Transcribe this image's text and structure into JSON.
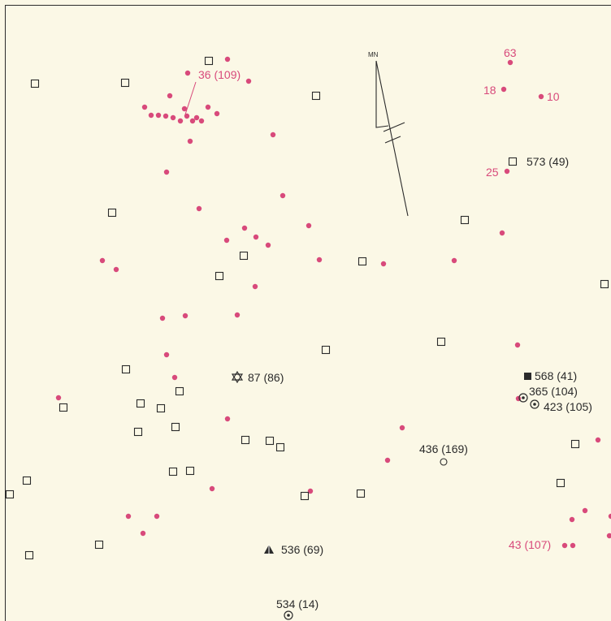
{
  "map": {
    "colors": {
      "background": "#fbf8e6",
      "pink": "#d84a7b",
      "ink": "#2b2b2b"
    },
    "north_arrow_label": "MN",
    "labels": [
      {
        "id": "l36",
        "text": "36 (109)",
        "color": "pink"
      },
      {
        "id": "l63",
        "text": "63",
        "color": "pink"
      },
      {
        "id": "l18",
        "text": "18",
        "color": "pink"
      },
      {
        "id": "l10",
        "text": "10",
        "color": "pink"
      },
      {
        "id": "l25",
        "text": "25",
        "color": "pink"
      },
      {
        "id": "l573",
        "text": "573 (49)",
        "color": "ink"
      },
      {
        "id": "l87",
        "text": "87 (86)",
        "color": "ink"
      },
      {
        "id": "l568",
        "text": "568 (41)",
        "color": "ink"
      },
      {
        "id": "l365",
        "text": "365 (104)",
        "color": "ink"
      },
      {
        "id": "l423",
        "text": "423 (105)",
        "color": "ink"
      },
      {
        "id": "l436",
        "text": "436 (169)",
        "color": "ink"
      },
      {
        "id": "l536",
        "text": "536 (69)",
        "color": "ink"
      },
      {
        "id": "l534",
        "text": "534 (14)",
        "color": "ink"
      },
      {
        "id": "l43",
        "text": "43 (107)",
        "color": "pink"
      }
    ]
  }
}
